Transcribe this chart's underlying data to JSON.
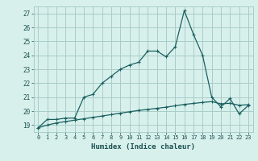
{
  "xlabel": "Humidex (Indice chaleur)",
  "background_color": "#d8f0ec",
  "grid_color": "#a8ccc8",
  "line_color": "#1a6060",
  "spine_color": "#888888",
  "tick_color": "#1a5050",
  "xlim": [
    -0.5,
    23.5
  ],
  "ylim": [
    18.5,
    27.5
  ],
  "yticks": [
    19,
    20,
    21,
    22,
    23,
    24,
    25,
    26,
    27
  ],
  "xtick_labels": [
    "0",
    "1",
    "2",
    "3",
    "4",
    "5",
    "6",
    "7",
    "8",
    "9",
    "10",
    "11",
    "12",
    "13",
    "14",
    "15",
    "16",
    "17",
    "18",
    "19",
    "20",
    "21",
    "22",
    "23"
  ],
  "series1_x": [
    0,
    1,
    2,
    3,
    4,
    5,
    6,
    7,
    8,
    9,
    10,
    11,
    12,
    13,
    14,
    15,
    16,
    17,
    18,
    19,
    20,
    21,
    22,
    23
  ],
  "series1_y": [
    18.8,
    19.4,
    19.4,
    19.5,
    19.5,
    21.0,
    21.2,
    22.0,
    22.5,
    23.0,
    23.3,
    23.5,
    24.3,
    24.3,
    23.9,
    24.6,
    27.2,
    25.5,
    24.0,
    21.0,
    20.3,
    20.9,
    19.8,
    20.4
  ],
  "series2_x": [
    0,
    1,
    2,
    3,
    4,
    5,
    6,
    7,
    8,
    9,
    10,
    11,
    12,
    13,
    14,
    15,
    16,
    17,
    18,
    19,
    20,
    21,
    22,
    23
  ],
  "series2_y": [
    18.8,
    19.0,
    19.15,
    19.25,
    19.35,
    19.45,
    19.55,
    19.65,
    19.75,
    19.85,
    19.95,
    20.05,
    20.12,
    20.2,
    20.28,
    20.38,
    20.48,
    20.55,
    20.62,
    20.68,
    20.52,
    20.56,
    20.42,
    20.46
  ],
  "figwidth": 3.2,
  "figheight": 2.0,
  "dpi": 100
}
